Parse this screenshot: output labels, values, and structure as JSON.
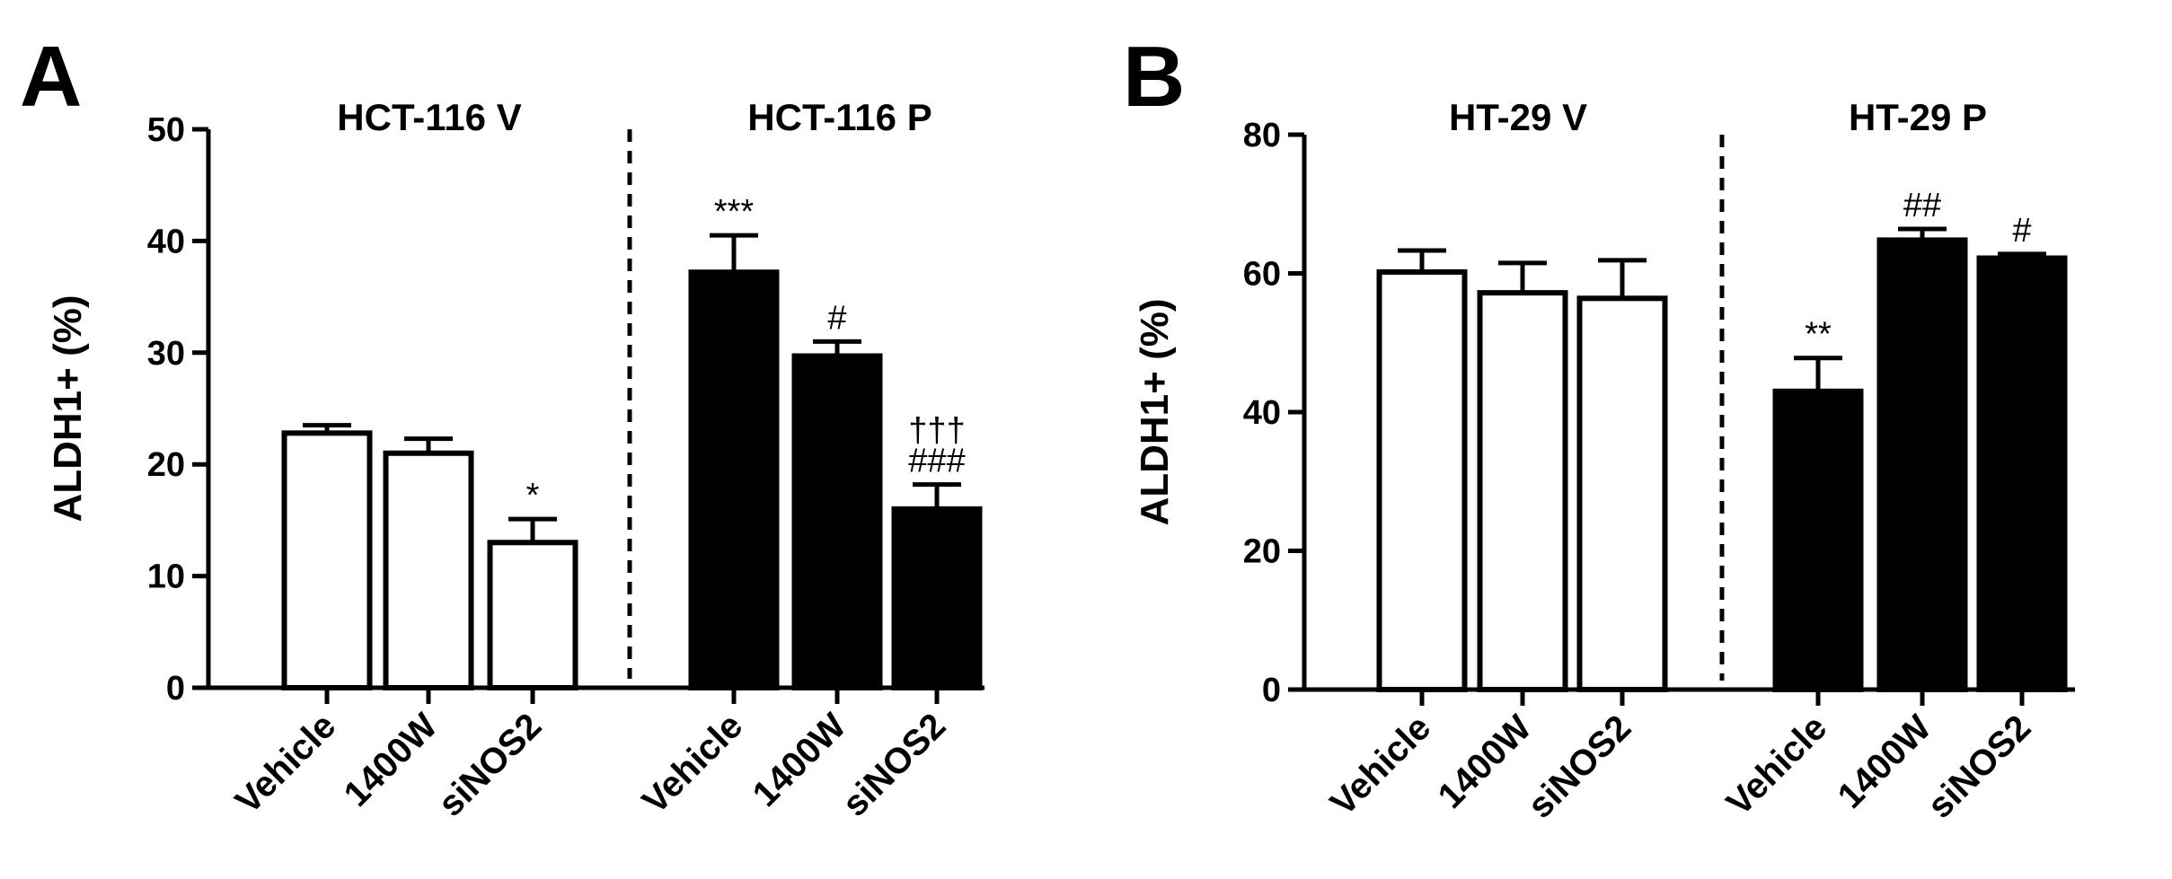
{
  "chart_data": [
    {
      "type": "bar",
      "panel": "A",
      "ylabel": "ALDH1+ (%)",
      "ylim": [
        0,
        50
      ],
      "yticks": [
        0,
        10,
        20,
        30,
        40,
        50
      ],
      "groups": [
        {
          "title": "HCT-116 V",
          "fill": "white",
          "categories": [
            "Vehicle",
            "1400W",
            "siNOS2"
          ],
          "values": [
            22.8,
            21.0,
            13.0
          ],
          "errors": [
            0.7,
            1.3,
            2.1
          ],
          "annotations": [
            "",
            "",
            "*"
          ]
        },
        {
          "title": "HCT-116 P",
          "fill": "black",
          "categories": [
            "Vehicle",
            "1400W",
            "siNOS2"
          ],
          "values": [
            37.2,
            29.7,
            16.0
          ],
          "errors": [
            3.3,
            1.3,
            2.2
          ],
          "annotations": [
            "***",
            "#",
            "†††\n###"
          ]
        }
      ]
    },
    {
      "type": "bar",
      "panel": "B",
      "ylabel": "ALDH1+ (%)",
      "ylim": [
        0,
        80
      ],
      "yticks": [
        0,
        20,
        40,
        60,
        80
      ],
      "groups": [
        {
          "title": "HT-29 V",
          "fill": "white",
          "categories": [
            "Vehicle",
            "1400W",
            "siNOS2"
          ],
          "values": [
            60.2,
            57.2,
            56.4
          ],
          "errors": [
            3.1,
            4.3,
            5.5
          ],
          "annotations": [
            "",
            "",
            ""
          ]
        },
        {
          "title": "HT-29 P",
          "fill": "black",
          "categories": [
            "Vehicle",
            "1400W",
            "siNOS2"
          ],
          "values": [
            43.0,
            64.8,
            62.2
          ],
          "errors": [
            4.8,
            1.6,
            0.6
          ],
          "annotations": [
            "**",
            "##",
            "#"
          ]
        }
      ]
    }
  ]
}
